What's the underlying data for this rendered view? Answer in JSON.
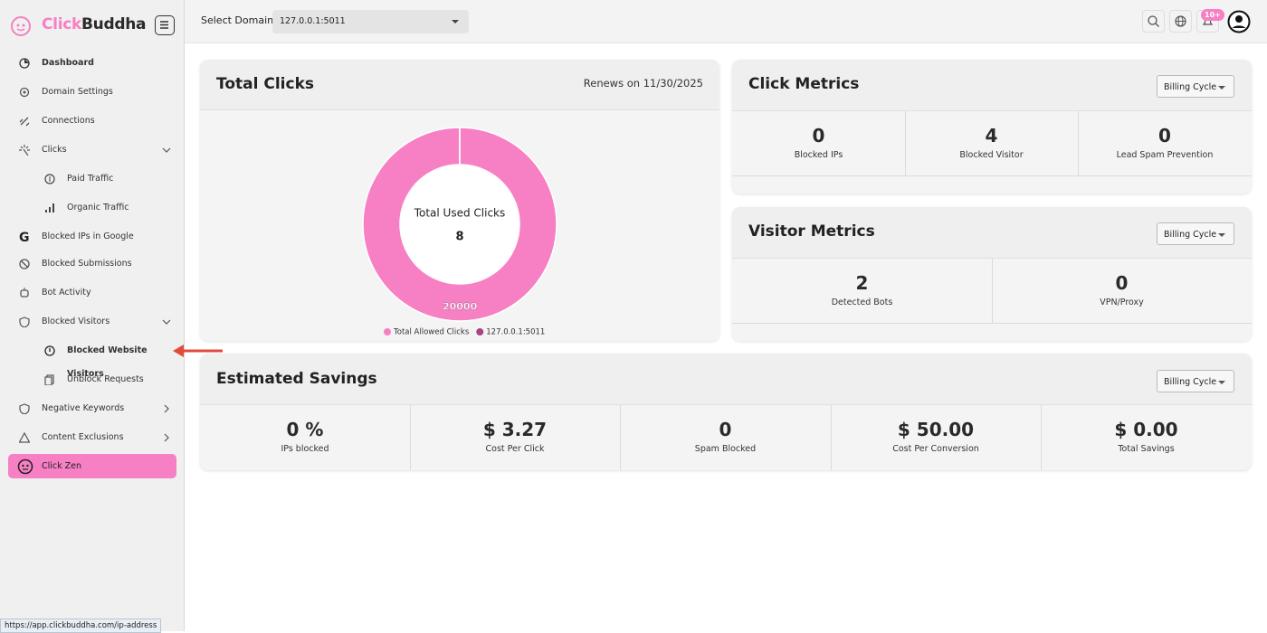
{
  "sidebar": {
    "brand": {
      "first": "Click",
      "second": "Buddha"
    },
    "menu": [
      "Dashboard",
      "Domain Settings",
      "Connections",
      "Clicks",
      "Paid Traffic",
      "Organic Traffic",
      "Blocked IPs in Google",
      "Blocked Submissions",
      "Bot Activity",
      "Blocked Visitors",
      "Blocked Website Visitors",
      "Unblock Requests",
      "Negative Keywords",
      "Content Exclusions",
      "Click Zen"
    ]
  },
  "topbar": {
    "domain_label": "Select Domain",
    "domain_value": "127.0.0.1:5011",
    "notification_badge": "10+"
  },
  "total_clicks": {
    "title": "Total Clicks",
    "renews": "Renews on 11/30/2025"
  },
  "chart_data": {
    "type": "donut",
    "center_label": "Total Used Clicks",
    "categories": [
      "Total Allowed Clicks",
      "127.0.0.1:5011"
    ],
    "values": [
      20000,
      8
    ],
    "colors": [
      "#f77fc3",
      "#a8447f"
    ]
  },
  "click_metrics": {
    "title": "Click Metrics",
    "filter": "Billing Cycle",
    "items": [
      {
        "value": 0,
        "label": "Blocked IPs"
      },
      {
        "value": 4,
        "label": "Blocked Visitor"
      },
      {
        "value": 0,
        "label": "Lead Spam Prevention"
      }
    ]
  },
  "visitor_metrics": {
    "title": "Visitor Metrics",
    "filter": "Billing Cycle",
    "items": [
      {
        "value": 2,
        "label": "Detected Bots"
      },
      {
        "value": 0,
        "label": "VPN/Proxy"
      }
    ]
  },
  "estimated_savings": {
    "title": "Estimated Savings",
    "filter": "Billing Cycle",
    "items": [
      {
        "value": "0 %",
        "label": "IPs blocked"
      },
      {
        "value": "$ 3.27",
        "label": "Cost Per Click"
      },
      {
        "value": 0,
        "label": "Spam Blocked"
      },
      {
        "value": "$ 50.00",
        "label": "Cost Per Conversion"
      },
      {
        "value": "$ 0.00",
        "label": "Total Savings"
      }
    ]
  },
  "status_url": "https://app.clickbuddha.com/ip-address"
}
